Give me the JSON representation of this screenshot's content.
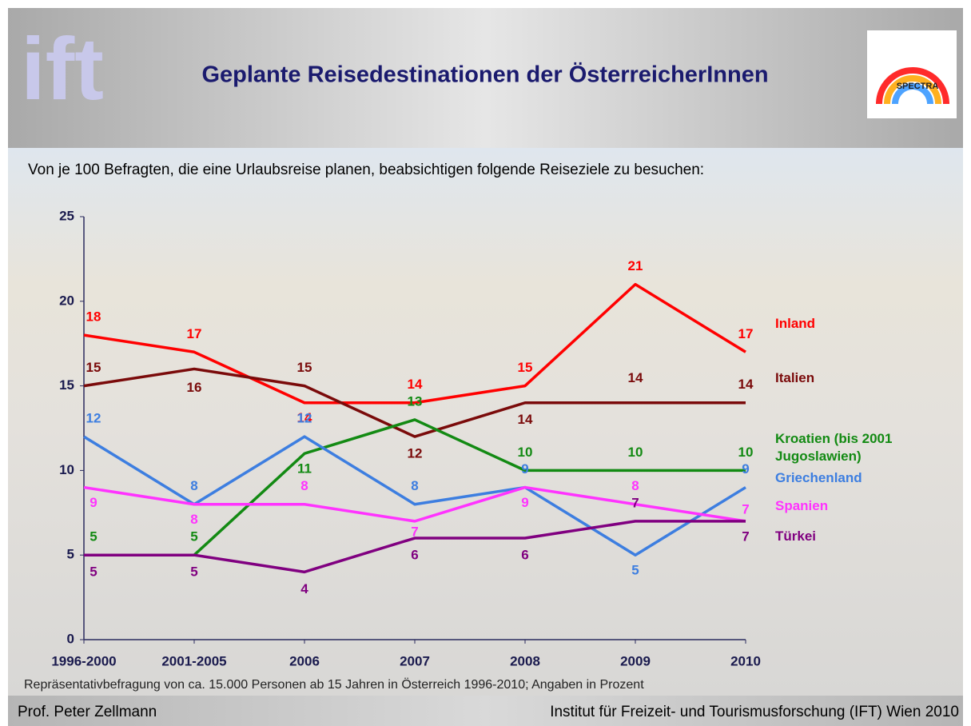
{
  "header": {
    "logo_left": "ift",
    "logo_right": "SPECTRA"
  },
  "chart_data": {
    "type": "line",
    "title": "Geplante Reisedestinationen der ÖsterreicherInnen",
    "subtitle": "Von je 100 Befragten, die eine Urlaubsreise planen, beabsichtigen folgende Reiseziele zu besuchen:",
    "note": "Repräsentativbefragung von ca. 15.000 Personen ab 15 Jahren  in Österreich 1996-2010; Angaben in Prozent",
    "categories": [
      "1996-2000",
      "2001-2005",
      "2006",
      "2007",
      "2008",
      "2009",
      "2010"
    ],
    "ylim": [
      0,
      25
    ],
    "yticks": [
      0,
      5,
      10,
      15,
      20,
      25
    ],
    "series": [
      {
        "name": "Inland",
        "color": "#ff0000",
        "values": [
          18,
          17,
          14,
          14,
          15,
          21,
          17
        ]
      },
      {
        "name": "Italien",
        "color": "#7a0a0a",
        "values": [
          15,
          16,
          15,
          12,
          14,
          14,
          14
        ]
      },
      {
        "name": "Kroatien (bis 2001 Jugoslawien)",
        "color": "#138a13",
        "values": [
          5,
          5,
          11,
          13,
          10,
          10,
          10
        ]
      },
      {
        "name": "Griechenland",
        "color": "#3d7ee0",
        "values": [
          12,
          8,
          12,
          8,
          9,
          5,
          9
        ]
      },
      {
        "name": "Spanien",
        "color": "#ff33ff",
        "values": [
          9,
          8,
          8,
          7,
          9,
          8,
          7
        ]
      },
      {
        "name": "Türkei",
        "color": "#800080",
        "values": [
          5,
          5,
          4,
          6,
          6,
          7,
          7
        ]
      }
    ]
  },
  "footer": {
    "left": "Prof. Peter Zellmann",
    "right": "Institut für Freizeit- und Tourismusforschung (IFT) Wien  2010"
  }
}
